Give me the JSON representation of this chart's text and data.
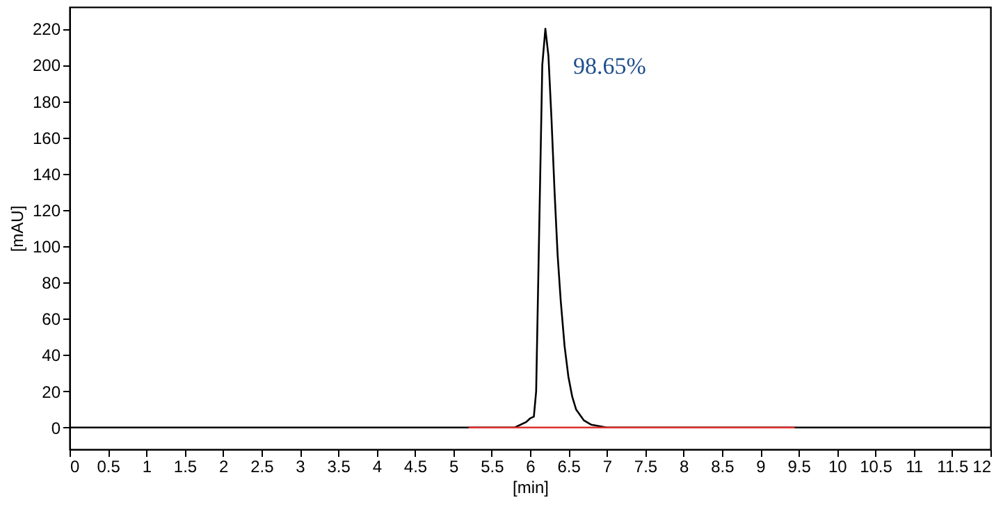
{
  "chart_data": {
    "type": "line",
    "xlabel": "[min]",
    "ylabel": "[mAU]",
    "xlim": [
      0,
      12
    ],
    "ylim": [
      -12,
      232
    ],
    "xticks": [
      0,
      0.5,
      1,
      1.5,
      2,
      2.5,
      3,
      3.5,
      4,
      4.5,
      5,
      5.5,
      6,
      6.5,
      7,
      7.5,
      8,
      8.5,
      9,
      9.5,
      10,
      10.5,
      11,
      11.5,
      12
    ],
    "yticks": [
      0,
      20,
      40,
      60,
      80,
      100,
      120,
      140,
      160,
      180,
      200,
      220
    ],
    "grid": false,
    "marker": "none",
    "line_style": "solid",
    "series": [
      {
        "color": "#000000",
        "x": [
          0,
          5.8,
          5.95,
          6.0,
          6.05,
          6.08,
          6.12,
          6.16,
          6.2,
          6.24,
          6.28,
          6.32,
          6.36,
          6.4,
          6.45,
          6.5,
          6.55,
          6.6,
          6.7,
          6.8,
          7.0,
          12
        ],
        "values": [
          0,
          0,
          3,
          5,
          6,
          20,
          110,
          200,
          220,
          205,
          170,
          130,
          95,
          70,
          45,
          28,
          17,
          10,
          4,
          1.5,
          0,
          0
        ]
      },
      {
        "color": "#e03030",
        "x": [
          5.2,
          9.45
        ],
        "values": [
          0,
          0
        ]
      }
    ],
    "annotations": [
      "98.65%"
    ]
  }
}
